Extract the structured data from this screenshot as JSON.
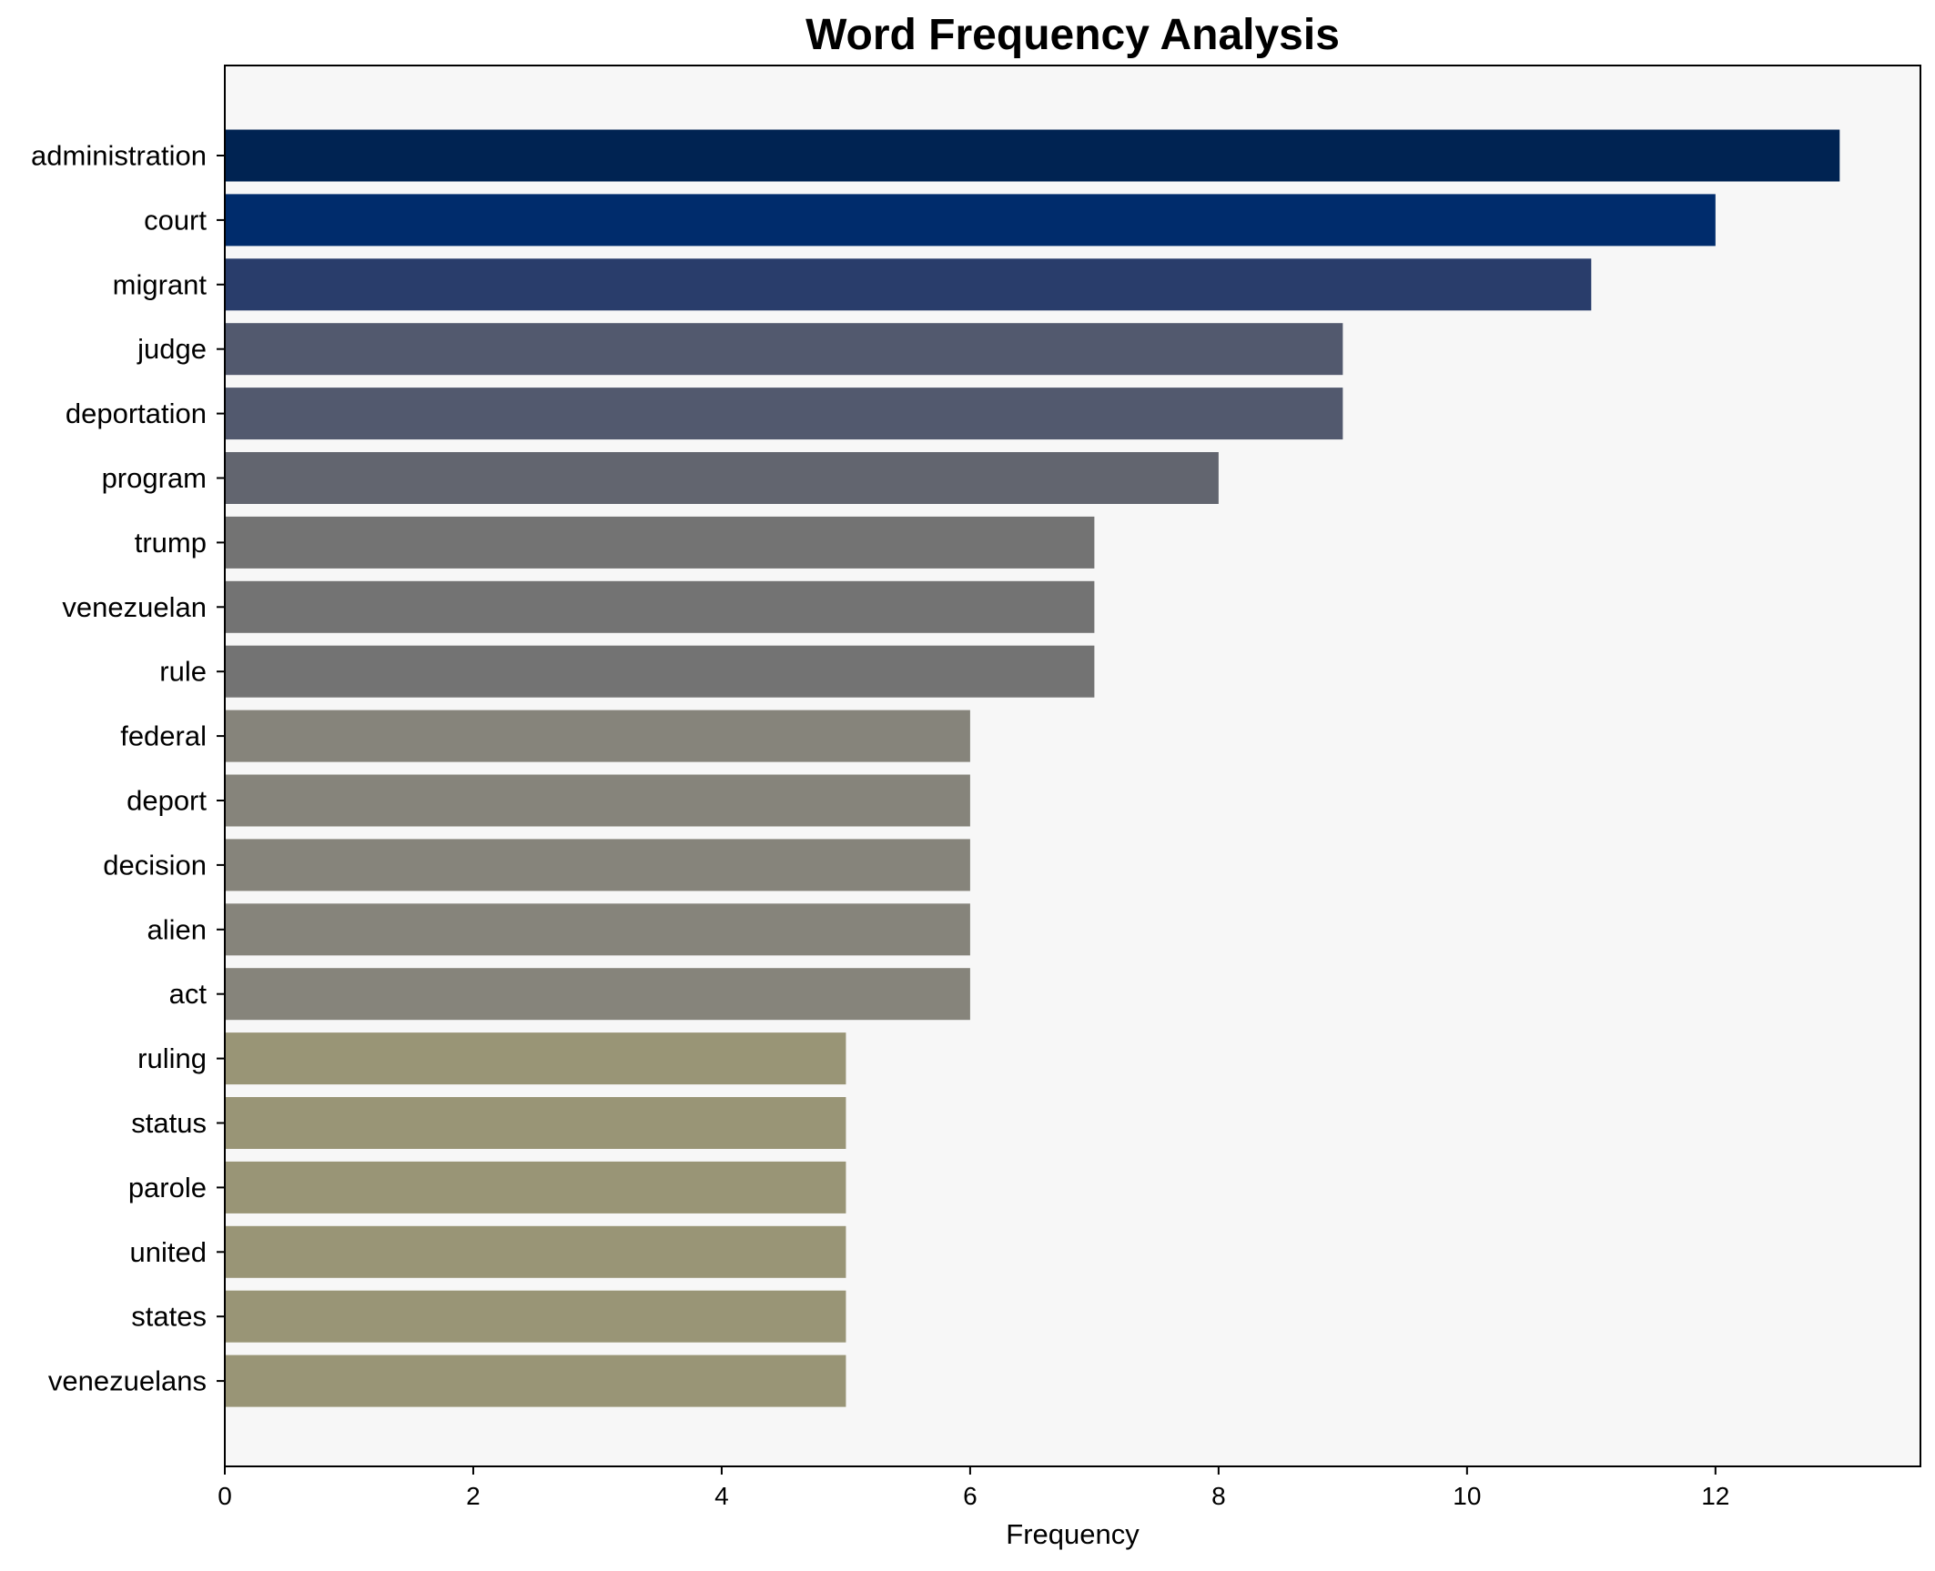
{
  "chart_data": {
    "type": "bar",
    "orientation": "horizontal",
    "title": "Word Frequency Analysis",
    "xlabel": "Frequency",
    "ylabel": "",
    "xlim": [
      0,
      13.65
    ],
    "xticks": [
      0,
      2,
      4,
      6,
      8,
      10,
      12
    ],
    "grid": false,
    "categories": [
      "administration",
      "court",
      "migrant",
      "judge",
      "deportation",
      "program",
      "trump",
      "venezuelan",
      "rule",
      "federal",
      "deport",
      "decision",
      "alien",
      "act",
      "ruling",
      "status",
      "parole",
      "united",
      "states",
      "venezuelans"
    ],
    "values": [
      13,
      12,
      11,
      9,
      9,
      8,
      7,
      7,
      7,
      6,
      6,
      6,
      6,
      6,
      5,
      5,
      5,
      5,
      5,
      5
    ],
    "colors": [
      "#002352",
      "#002c6c",
      "#293d6b",
      "#52596e",
      "#52596e",
      "#62656f",
      "#737373",
      "#737373",
      "#737373",
      "#86847b",
      "#86847b",
      "#86847b",
      "#86847b",
      "#86847b",
      "#999576",
      "#999576",
      "#999576",
      "#999576",
      "#999576",
      "#999576"
    ],
    "plot_background": "#f7f7f7"
  }
}
